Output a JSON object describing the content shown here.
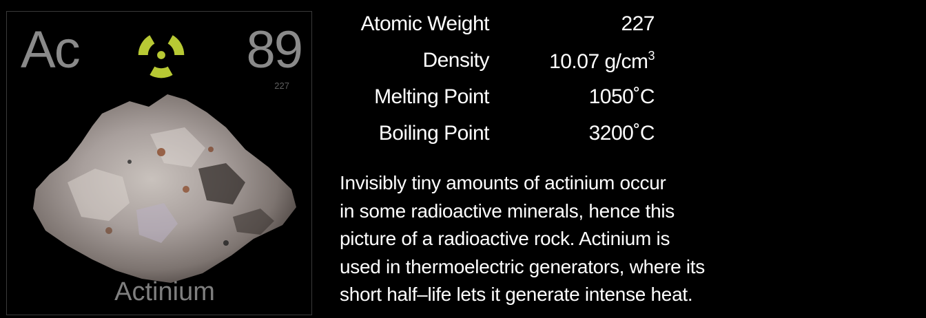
{
  "element": {
    "symbol": "Ac",
    "atomic_number": "89",
    "atomic_weight_small": "227",
    "name": "Actinium",
    "hazard_icon": "radiation-icon",
    "hazard_color": "#b8c934"
  },
  "properties": [
    {
      "label": "Atomic Weight",
      "value": "227",
      "sup": ""
    },
    {
      "label": "Density",
      "value": "10.07 g/cm",
      "sup": "3"
    },
    {
      "label": "Melting Point",
      "value": "1050˚C",
      "sup": ""
    },
    {
      "label": "Boiling Point",
      "value": "3200˚C",
      "sup": ""
    }
  ],
  "description_lines": [
    "Invisibly tiny amounts of actinium occur",
    "in some radioactive minerals, hence this",
    "picture of a radioactive rock. Actinium is",
    "used in thermoelectric generators, where its",
    "short half–life lets it generate intense heat."
  ]
}
